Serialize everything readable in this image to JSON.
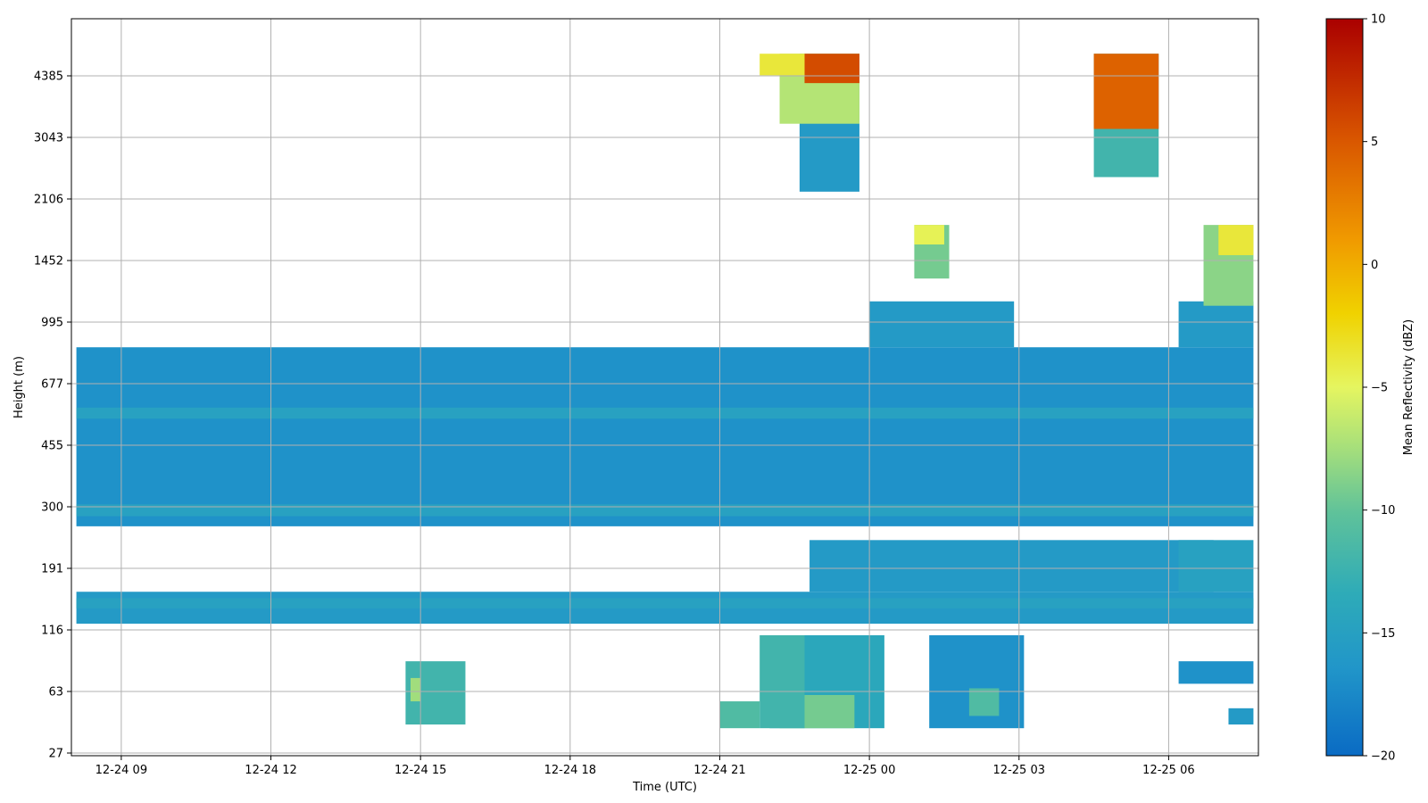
{
  "chart_data": {
    "type": "heatmap",
    "title": "",
    "xlabel": "Time (UTC)",
    "ylabel": "Height (m)",
    "x_ticks": [
      "12-24 09",
      "12-24 12",
      "12-24 15",
      "12-24 18",
      "12-24 21",
      "12-25 00",
      "12-25 03",
      "12-25 06"
    ],
    "y_ticks": [
      "27",
      "63",
      "116",
      "191",
      "300",
      "455",
      "677",
      "995",
      "1452",
      "2106",
      "3043",
      "4385"
    ],
    "grid": true,
    "colorbar": {
      "label": "Mean Reflectivity (dBZ)",
      "ticks": [
        "10",
        "5",
        "0",
        "−5",
        "−10",
        "−15",
        "−20"
      ],
      "range": [
        -20,
        10
      ],
      "colormap": "jet-like: blue → teal → yellow → orange → red",
      "stops": [
        "#0a6bc4",
        "#2196c9",
        "#2eabb8",
        "#5fc29a",
        "#a8e07a",
        "#e5f560",
        "#f0d200",
        "#f09a00",
        "#d85400",
        "#aa0000"
      ]
    },
    "x_range": [
      "12-24 08",
      "12-25 07"
    ],
    "y_range_m": [
      27,
      5100
    ],
    "cells": [
      {
        "t0": 8.1,
        "t1": 31.7,
        "z0": 260,
        "z1": 850,
        "dbz": -17
      },
      {
        "t0": 8.1,
        "t1": 31.7,
        "z0": 540,
        "z1": 580,
        "dbz": -15
      },
      {
        "t0": 8.1,
        "t1": 31.7,
        "z0": 280,
        "z1": 305,
        "dbz": -15
      },
      {
        "t0": 8.1,
        "t1": 31.7,
        "z0": 122,
        "z1": 158,
        "dbz": -16
      },
      {
        "t0": 8.1,
        "t1": 31.7,
        "z0": 138,
        "z1": 150,
        "dbz": -15
      },
      {
        "t0": 24.0,
        "t1": 26.9,
        "z0": 850,
        "z1": 1130,
        "dbz": -16
      },
      {
        "t0": 30.2,
        "t1": 31.7,
        "z0": 850,
        "z1": 1130,
        "dbz": -16
      },
      {
        "t0": 22.8,
        "t1": 30.9,
        "z0": 158,
        "z1": 235,
        "dbz": -16
      },
      {
        "t0": 30.2,
        "t1": 31.7,
        "z0": 158,
        "z1": 235,
        "dbz": -15
      },
      {
        "t0": 22.6,
        "t1": 23.8,
        "z0": 2200,
        "z1": 5000,
        "dbz": -16
      },
      {
        "t0": 22.2,
        "t1": 23.8,
        "z0": 3300,
        "z1": 5000,
        "dbz": -6
      },
      {
        "t0": 22.7,
        "t1": 23.8,
        "z0": 4200,
        "z1": 5000,
        "dbz": 7
      },
      {
        "t0": 21.8,
        "t1": 22.7,
        "z0": 4400,
        "z1": 5000,
        "dbz": -2
      },
      {
        "t0": 28.5,
        "t1": 29.8,
        "z0": 2400,
        "z1": 5000,
        "dbz": -12
      },
      {
        "t0": 28.5,
        "t1": 29.8,
        "z0": 3200,
        "z1": 5000,
        "dbz": 6
      },
      {
        "t0": 24.9,
        "t1": 25.6,
        "z0": 1300,
        "z1": 1800,
        "dbz": -9
      },
      {
        "t0": 24.9,
        "t1": 25.5,
        "z0": 1600,
        "z1": 1800,
        "dbz": -3
      },
      {
        "t0": 30.7,
        "t1": 31.7,
        "z0": 1100,
        "z1": 1800,
        "dbz": -8
      },
      {
        "t0": 31.0,
        "t1": 31.7,
        "z0": 1500,
        "z1": 1800,
        "dbz": -2
      },
      {
        "t0": 22.0,
        "t1": 24.3,
        "z0": 38,
        "z1": 110,
        "dbz": -14
      },
      {
        "t0": 22.2,
        "t1": 23.7,
        "z0": 38,
        "z1": 60,
        "dbz": -9
      },
      {
        "t0": 21.8,
        "t1": 22.7,
        "z0": 38,
        "z1": 110,
        "dbz": -12
      },
      {
        "t0": 21.0,
        "t1": 21.8,
        "z0": 38,
        "z1": 55,
        "dbz": -11
      },
      {
        "t0": 25.2,
        "t1": 27.1,
        "z0": 38,
        "z1": 110,
        "dbz": -17
      },
      {
        "t0": 26.0,
        "t1": 26.6,
        "z0": 45,
        "z1": 65,
        "dbz": -11
      },
      {
        "t0": 14.7,
        "t1": 15.9,
        "z0": 40,
        "z1": 85,
        "dbz": -12
      },
      {
        "t0": 14.8,
        "t1": 15.0,
        "z0": 55,
        "z1": 72,
        "dbz": -7
      },
      {
        "t0": 31.2,
        "t1": 31.7,
        "z0": 40,
        "z1": 50,
        "dbz": -16
      },
      {
        "t0": 30.2,
        "t1": 31.7,
        "z0": 68,
        "z1": 85,
        "dbz": -17
      }
    ]
  }
}
